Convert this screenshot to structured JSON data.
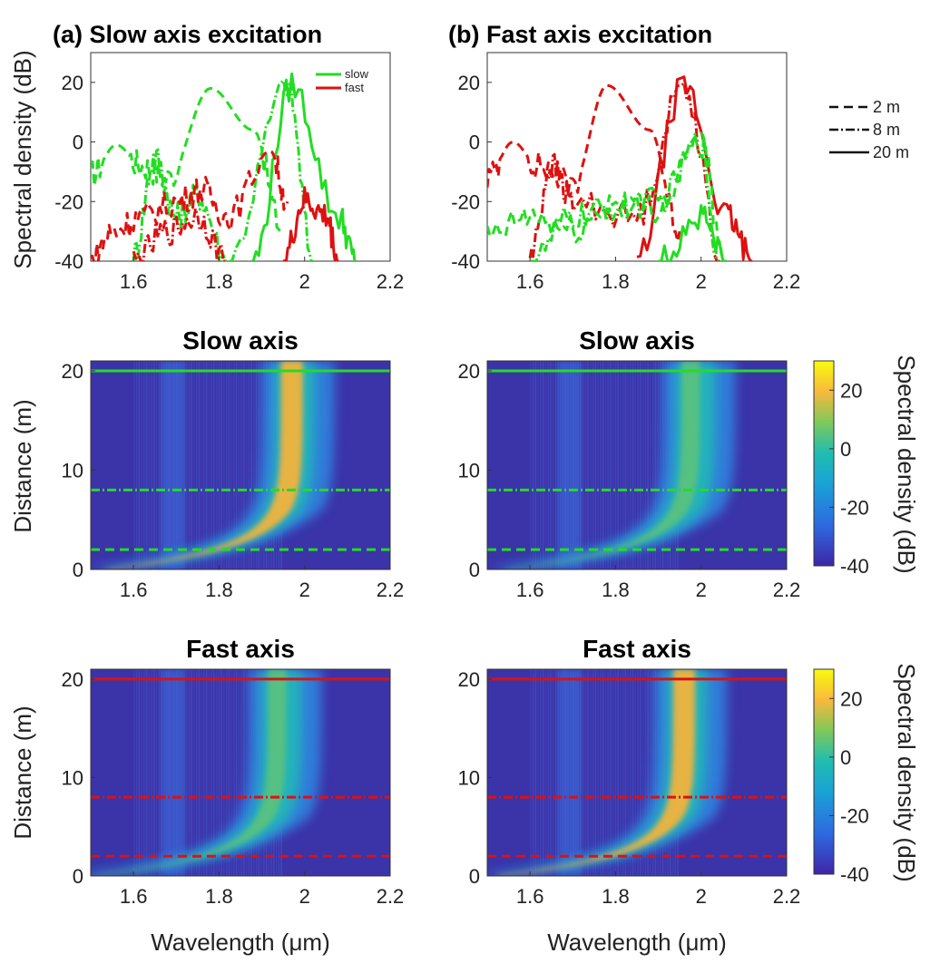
{
  "colors": {
    "slow": "#22dd22",
    "fast": "#dd1111",
    "heat_bg": "#3b33a8"
  },
  "chart_data": [
    {
      "type": "line",
      "id": "a-top",
      "title": "(a) Slow axis excitation",
      "xlabel": "",
      "ylabel": "Spectral density (dB)",
      "xlim": [
        1.5,
        2.2
      ],
      "ylim": [
        -40,
        30
      ],
      "xticks": [
        "1.6",
        "1.8",
        "2",
        "2.2"
      ],
      "yticks": [
        "-40",
        "-20",
        "0",
        "20"
      ],
      "legend": {
        "position": "top-right",
        "entries": [
          "slow",
          "fast"
        ]
      },
      "series": [
        {
          "name": "slow",
          "length": "2 m",
          "x": [
            1.5,
            1.56,
            1.62,
            1.68,
            1.78,
            1.88,
            1.95
          ],
          "y": [
            -11,
            -1,
            -8,
            -12,
            18,
            4,
            -30
          ]
        },
        {
          "name": "slow",
          "length": "8 m",
          "x": [
            1.6,
            1.65,
            1.7,
            1.75,
            1.82,
            1.96,
            2.02
          ],
          "y": [
            -38,
            -5,
            -25,
            -18,
            -40,
            19,
            -40
          ]
        },
        {
          "name": "slow",
          "length": "20 m",
          "x": [
            1.88,
            1.97,
            2.08,
            2.12
          ],
          "y": [
            -40,
            19,
            -25,
            -40
          ]
        },
        {
          "name": "fast",
          "length": "2 m",
          "x": [
            1.5,
            1.55,
            1.62,
            1.7,
            1.76,
            1.82,
            1.92,
            1.96
          ],
          "y": [
            -40,
            -30,
            -25,
            -20,
            -16,
            -25,
            -3,
            -20
          ]
        },
        {
          "name": "fast",
          "length": "8 m",
          "x": [
            1.6,
            1.68,
            1.75,
            1.82
          ],
          "y": [
            -40,
            -30,
            -25,
            -40
          ]
        },
        {
          "name": "fast",
          "length": "20 m",
          "x": [
            1.95,
            2.0,
            2.05,
            2.08
          ],
          "y": [
            -40,
            -20,
            -25,
            -40
          ]
        }
      ]
    },
    {
      "type": "line",
      "id": "b-top",
      "title": "(b) Fast axis excitation",
      "xlim": [
        1.5,
        2.2
      ],
      "ylim": [
        -40,
        30
      ],
      "xticks": [
        "1.6",
        "1.8",
        "2",
        "2.2"
      ],
      "yticks": [
        "-40",
        "-20",
        "0",
        "20"
      ],
      "legend": {
        "position": "right",
        "entries": [
          "2 m",
          "8 m",
          "20 m"
        ]
      },
      "series": [
        {
          "name": "fast",
          "length": "2 m",
          "x": [
            1.5,
            1.56,
            1.62,
            1.7,
            1.78,
            1.88,
            1.95
          ],
          "y": [
            -12,
            0,
            -8,
            -14,
            19,
            4,
            -30
          ]
        },
        {
          "name": "fast",
          "length": "8 m",
          "x": [
            1.6,
            1.65,
            1.7,
            1.85,
            1.96,
            2.05
          ],
          "y": [
            -38,
            -8,
            -20,
            -25,
            19,
            -40
          ]
        },
        {
          "name": "fast",
          "length": "20 m",
          "x": [
            1.85,
            1.96,
            2.06,
            2.12
          ],
          "y": [
            -40,
            19,
            -25,
            -40
          ]
        },
        {
          "name": "slow",
          "length": "2 m",
          "x": [
            1.5,
            1.6,
            1.7,
            1.8,
            1.9,
            2.0,
            2.05
          ],
          "y": [
            -32,
            -25,
            -30,
            -20,
            -22,
            3,
            -40
          ]
        },
        {
          "name": "slow",
          "length": "8 m",
          "x": [
            1.6,
            1.7,
            1.8,
            1.9,
            2.0,
            2.04
          ],
          "y": [
            -40,
            -25,
            -22,
            -20,
            0,
            -40
          ]
        },
        {
          "name": "slow",
          "length": "20 m",
          "x": [
            1.9,
            2.0,
            2.06
          ],
          "y": [
            -40,
            -25,
            -40
          ]
        }
      ]
    },
    {
      "type": "heatmap",
      "id": "a-slow",
      "title": "Slow axis",
      "ylabel": "Distance (m)",
      "xlim": [
        1.5,
        2.2
      ],
      "ylim": [
        0,
        21
      ],
      "xticks": [
        "1.6",
        "1.8",
        "2",
        "2.2"
      ],
      "yticks": [
        "0",
        "10",
        "20"
      ],
      "peak_wavelength": 1.96,
      "ridge_intensity": 1.0,
      "marker_lines": [
        2,
        8,
        20
      ]
    },
    {
      "type": "heatmap",
      "id": "b-slow",
      "title": "Slow axis",
      "xlim": [
        1.5,
        2.2
      ],
      "ylim": [
        0,
        21
      ],
      "xticks": [
        "1.6",
        "1.8",
        "2",
        "2.2"
      ],
      "yticks": [
        "0",
        "10",
        "20"
      ],
      "peak_wavelength": 1.97,
      "ridge_intensity": 0.55,
      "marker_lines": [
        2,
        8,
        20
      ]
    },
    {
      "type": "heatmap",
      "id": "a-fast",
      "title": "Fast axis",
      "ylabel": "Distance (m)",
      "xlabel": "Wavelength (μm)",
      "xlim": [
        1.5,
        2.2
      ],
      "ylim": [
        0,
        21
      ],
      "xticks": [
        "1.6",
        "1.8",
        "2",
        "2.2"
      ],
      "yticks": [
        "0",
        "10",
        "20"
      ],
      "peak_wavelength": 1.93,
      "ridge_intensity": 0.55,
      "marker_lines": [
        2,
        8,
        20
      ]
    },
    {
      "type": "heatmap",
      "id": "b-fast",
      "title": "Fast axis",
      "xlabel": "Wavelength (μm)",
      "xlim": [
        1.5,
        2.2
      ],
      "ylim": [
        0,
        21
      ],
      "xticks": [
        "1.6",
        "1.8",
        "2",
        "2.2"
      ],
      "yticks": [
        "0",
        "10",
        "20"
      ],
      "peak_wavelength": 1.95,
      "ridge_intensity": 1.0,
      "marker_lines": [
        2,
        8,
        20
      ]
    }
  ],
  "colorbar": {
    "label": "Spectral density (dB)",
    "range": [
      -40,
      30
    ],
    "ticks": [
      "-40",
      "-20",
      "0",
      "20"
    ]
  },
  "length_legend": [
    "2 m",
    "8 m",
    "20 m"
  ],
  "labels": {
    "title_a": "(a) Slow axis excitation",
    "title_b": "(b) Fast axis excitation",
    "ylabel_top": "Spectral density (dB)",
    "ylabel_dist": "Distance (m)",
    "xlabel": "Wavelength (μm)",
    "title_slow": "Slow axis",
    "title_fast": "Fast axis",
    "legend_slow": "slow",
    "legend_fast": "fast",
    "colorbar_label": "Spectral density (dB)"
  }
}
